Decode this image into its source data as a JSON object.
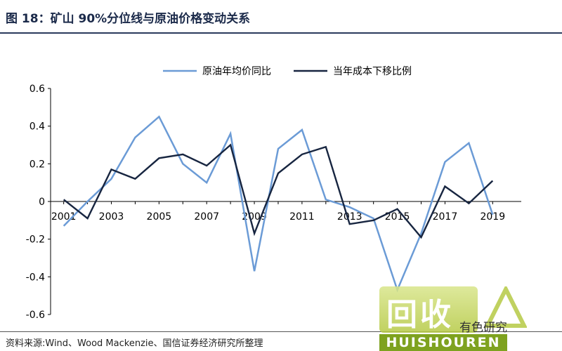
{
  "figure": {
    "title": "图 18：矿山 90%分位线与原油价格变动关系",
    "source": "资料来源:Wind、Wood Mackenzie、国信证券经济研究所整理"
  },
  "watermark": {
    "main_text": "回收",
    "side_text": "有色研究",
    "latin_text": "HUISHOUREN",
    "color": "#b5c944"
  },
  "chart_data": {
    "type": "line",
    "x": [
      2001,
      2002,
      2003,
      2004,
      2005,
      2006,
      2007,
      2008,
      2009,
      2010,
      2011,
      2012,
      2013,
      2014,
      2015,
      2016,
      2017,
      2018,
      2019
    ],
    "x_tick_labels": [
      "2001",
      "2003",
      "2005",
      "2007",
      "2009",
      "2011",
      "2013",
      "2015",
      "2017",
      "2019"
    ],
    "y_tick_labels": [
      "0.6",
      "0.4",
      "0.2",
      "0",
      "-0.2",
      "-0.4",
      "-0.6"
    ],
    "ylim": [
      -0.6,
      0.6
    ],
    "grid": false,
    "legend_position": "top-center",
    "series": [
      {
        "name": "原油年均价同比",
        "color": "#6b9bd6",
        "values": [
          -0.13,
          0.0,
          0.12,
          0.34,
          0.45,
          0.2,
          0.1,
          0.36,
          -0.37,
          0.28,
          0.38,
          0.01,
          -0.03,
          -0.09,
          -0.47,
          -0.17,
          0.21,
          0.31,
          -0.07
        ]
      },
      {
        "name": "当年成本下移比例",
        "color": "#172540",
        "values": [
          0.01,
          -0.09,
          0.17,
          0.12,
          0.23,
          0.25,
          0.19,
          0.3,
          -0.17,
          0.15,
          0.25,
          0.29,
          -0.12,
          -0.1,
          -0.04,
          -0.19,
          0.08,
          -0.01,
          0.11
        ]
      }
    ]
  }
}
